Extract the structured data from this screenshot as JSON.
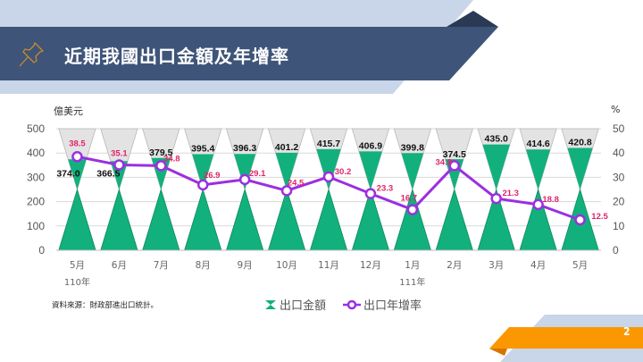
{
  "header": {
    "title": "近期我國出口金額及年增率",
    "icon": "pushpin-icon"
  },
  "footer": {
    "source": "資料來源：財政部進出口統計。",
    "page_number": "2"
  },
  "legend": {
    "bar_label": "出口金額",
    "line_label": "出口年增率"
  },
  "colors": {
    "header_band": "#3e5479",
    "header_light": "#c9d5e8",
    "header_dark": "#2a3a55",
    "bar_fill": "#12b07d",
    "bar_empty": "#e3e3e3",
    "line": "#9b2fe0",
    "line_label": "#e0246a",
    "footer_orange": "#fb9700",
    "footer_orange_dark": "#d87400"
  },
  "chart_data": {
    "type": "bar",
    "subtype": "hourglass-bar-with-line",
    "title": "近期我國出口金額及年增率",
    "categories": [
      "5月",
      "6月",
      "7月",
      "8月",
      "9月",
      "10月",
      "11月",
      "12月",
      "1月",
      "2月",
      "3月",
      "4月",
      "5月"
    ],
    "year_labels": [
      {
        "index": 0,
        "label": "110年"
      },
      {
        "index": 8,
        "label": "111年"
      }
    ],
    "series": [
      {
        "name": "出口金額",
        "type": "bar",
        "axis": "left",
        "values": [
          374.0,
          366.5,
          379.5,
          395.4,
          396.3,
          401.2,
          415.7,
          406.9,
          399.8,
          374.5,
          435.0,
          414.6,
          420.8
        ]
      },
      {
        "name": "出口年增率",
        "type": "line",
        "axis": "right",
        "values": [
          38.5,
          35.1,
          34.8,
          26.9,
          29.1,
          24.5,
          30.2,
          23.3,
          16.7,
          34.8,
          21.3,
          18.8,
          12.5
        ]
      }
    ],
    "ylabel_left": "億美元",
    "ylabel_right": "%",
    "ylim_left": [
      0,
      500
    ],
    "ylim_right": [
      0,
      50
    ],
    "yticks_left": [
      0,
      100,
      200,
      300,
      400,
      500
    ],
    "yticks_right": [
      0,
      10,
      20,
      30,
      40,
      50
    ],
    "grid": true,
    "legend_position": "bottom"
  }
}
